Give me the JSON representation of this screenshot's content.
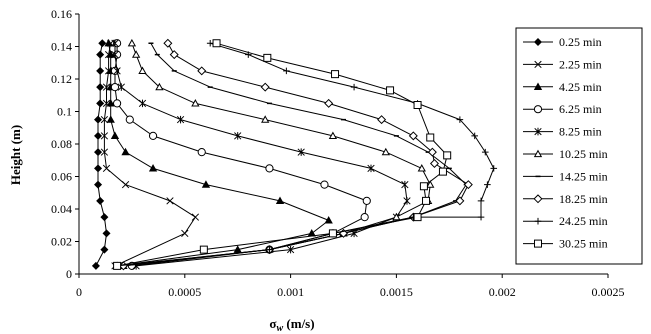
{
  "chart_data": {
    "type": "scatter",
    "title": "",
    "xlabel_symbol": "σ",
    "xlabel_subscript": "w",
    "xlabel_units": " (m/s)",
    "ylabel": "Height (m)",
    "xlim": [
      0,
      0.0025
    ],
    "ylim": [
      0,
      0.16
    ],
    "x_ticks": [
      0,
      0.0005,
      0.001,
      0.0015,
      0.002,
      0.0025
    ],
    "x_tick_labels": [
      "0",
      "0.0005",
      "0.001",
      "0.0015",
      "0.002",
      "0.0025"
    ],
    "y_ticks": [
      0,
      0.02,
      0.04,
      0.06,
      0.08,
      0.1,
      0.12,
      0.14,
      0.16
    ],
    "y_tick_labels": [
      "0",
      "0.02",
      "0.04",
      "0.06",
      "0.08",
      "0.1",
      "0.12",
      "0.14",
      "0.16"
    ],
    "grid": false,
    "legend_position": "right",
    "series": [
      {
        "name": "0.25 min",
        "marker": "diamond-filled",
        "points": [
          [
            8e-05,
            0.005
          ],
          [
            0.00012,
            0.015
          ],
          [
            0.00013,
            0.025
          ],
          [
            0.00012,
            0.035
          ],
          [
            0.0001,
            0.045
          ],
          [
            9e-05,
            0.055
          ],
          [
            9e-05,
            0.065
          ],
          [
            9e-05,
            0.075
          ],
          [
            9e-05,
            0.085
          ],
          [
            9e-05,
            0.095
          ],
          [
            0.0001,
            0.105
          ],
          [
            0.0001,
            0.115
          ],
          [
            0.0001,
            0.125
          ],
          [
            0.0001,
            0.135
          ],
          [
            0.00011,
            0.142
          ]
        ]
      },
      {
        "name": "2.25 min",
        "marker": "x",
        "points": [
          [
            0.00017,
            0.005
          ],
          [
            0.0005,
            0.025
          ],
          [
            0.00055,
            0.035
          ],
          [
            0.00043,
            0.045
          ],
          [
            0.00022,
            0.055
          ],
          [
            0.00013,
            0.065
          ],
          [
            0.00012,
            0.075
          ],
          [
            0.00012,
            0.085
          ],
          [
            0.00012,
            0.095
          ],
          [
            0.00013,
            0.105
          ],
          [
            0.00013,
            0.115
          ],
          [
            0.00014,
            0.125
          ],
          [
            0.00014,
            0.135
          ],
          [
            0.00015,
            0.142
          ]
        ]
      },
      {
        "name": "4.25 min",
        "marker": "triangle-filled",
        "points": [
          [
            0.00018,
            0.005
          ],
          [
            0.00075,
            0.015
          ],
          [
            0.0011,
            0.025
          ],
          [
            0.00118,
            0.033
          ],
          [
            0.00095,
            0.045
          ],
          [
            0.0006,
            0.055
          ],
          [
            0.00035,
            0.065
          ],
          [
            0.00022,
            0.075
          ],
          [
            0.00017,
            0.085
          ],
          [
            0.00015,
            0.095
          ],
          [
            0.00015,
            0.105
          ],
          [
            0.00015,
            0.115
          ],
          [
            0.00015,
            0.125
          ],
          [
            0.00015,
            0.135
          ],
          [
            0.00014,
            0.142
          ]
        ]
      },
      {
        "name": "6.25 min",
        "marker": "circle-open",
        "points": [
          [
            0.00025,
            0.005
          ],
          [
            0.0009,
            0.015
          ],
          [
            0.0012,
            0.025
          ],
          [
            0.00135,
            0.035
          ],
          [
            0.00136,
            0.045
          ],
          [
            0.00116,
            0.055
          ],
          [
            0.0009,
            0.065
          ],
          [
            0.00058,
            0.075
          ],
          [
            0.00035,
            0.085
          ],
          [
            0.00024,
            0.095
          ],
          [
            0.00018,
            0.105
          ],
          [
            0.00017,
            0.115
          ],
          [
            0.00017,
            0.125
          ],
          [
            0.00018,
            0.135
          ],
          [
            0.00018,
            0.142
          ]
        ]
      },
      {
        "name": "8.25 min",
        "marker": "star",
        "points": [
          [
            0.00027,
            0.005
          ],
          [
            0.001,
            0.015
          ],
          [
            0.0013,
            0.025
          ],
          [
            0.0015,
            0.035
          ],
          [
            0.00155,
            0.045
          ],
          [
            0.00154,
            0.055
          ],
          [
            0.00138,
            0.065
          ],
          [
            0.00105,
            0.075
          ],
          [
            0.00075,
            0.085
          ],
          [
            0.00048,
            0.095
          ],
          [
            0.0003,
            0.105
          ],
          [
            0.0002,
            0.115
          ],
          [
            0.00018,
            0.125
          ],
          [
            0.00017,
            0.135
          ],
          [
            0.00017,
            0.142
          ]
        ]
      },
      {
        "name": "10.25 min",
        "marker": "triangle-open",
        "points": [
          [
            0.00021,
            0.005
          ],
          [
            0.0009,
            0.015
          ],
          [
            0.00125,
            0.025
          ],
          [
            0.0015,
            0.035
          ],
          [
            0.00165,
            0.045
          ],
          [
            0.00166,
            0.055
          ],
          [
            0.00162,
            0.065
          ],
          [
            0.00145,
            0.075
          ],
          [
            0.0012,
            0.085
          ],
          [
            0.00088,
            0.095
          ],
          [
            0.00055,
            0.105
          ],
          [
            0.00038,
            0.115
          ],
          [
            0.0003,
            0.125
          ],
          [
            0.00027,
            0.135
          ],
          [
            0.00025,
            0.142
          ]
        ]
      },
      {
        "name": "14.25 min",
        "marker": "dash",
        "points": [
          [
            0.00019,
            0.005
          ],
          [
            0.0009,
            0.015
          ],
          [
            0.00125,
            0.025
          ],
          [
            0.00158,
            0.035
          ],
          [
            0.00178,
            0.045
          ],
          [
            0.00183,
            0.055
          ],
          [
            0.00175,
            0.065
          ],
          [
            0.00165,
            0.075
          ],
          [
            0.0015,
            0.085
          ],
          [
            0.00125,
            0.095
          ],
          [
            0.0009,
            0.105
          ],
          [
            0.00062,
            0.115
          ],
          [
            0.00045,
            0.125
          ],
          [
            0.00037,
            0.135
          ],
          [
            0.00034,
            0.142
          ]
        ]
      },
      {
        "name": "18.25 min",
        "marker": "diamond-open",
        "points": [
          [
            0.00021,
            0.005
          ],
          [
            0.0009,
            0.015
          ],
          [
            0.00125,
            0.025
          ],
          [
            0.00158,
            0.035
          ],
          [
            0.0018,
            0.045
          ],
          [
            0.00184,
            0.055
          ],
          [
            0.00168,
            0.068
          ],
          [
            0.00167,
            0.075
          ],
          [
            0.00158,
            0.085
          ],
          [
            0.00143,
            0.095
          ],
          [
            0.00118,
            0.105
          ],
          [
            0.00088,
            0.115
          ],
          [
            0.00058,
            0.125
          ],
          [
            0.00045,
            0.135
          ],
          [
            0.00042,
            0.142
          ]
        ]
      },
      {
        "name": "24.25 min",
        "marker": "plus",
        "points": [
          [
            0.00018,
            0.005
          ],
          [
            0.0009,
            0.015
          ],
          [
            0.0012,
            0.025
          ],
          [
            0.00158,
            0.035
          ],
          [
            0.0019,
            0.035
          ],
          [
            0.0019,
            0.045
          ],
          [
            0.00193,
            0.055
          ],
          [
            0.00196,
            0.065
          ],
          [
            0.00192,
            0.075
          ],
          [
            0.00187,
            0.085
          ],
          [
            0.0018,
            0.095
          ],
          [
            0.0016,
            0.105
          ],
          [
            0.0013,
            0.115
          ],
          [
            0.00098,
            0.125
          ],
          [
            0.0008,
            0.135
          ],
          [
            0.00062,
            0.142
          ]
        ]
      },
      {
        "name": "30.25 min",
        "marker": "square-open",
        "points": [
          [
            0.00018,
            0.005
          ],
          [
            0.00059,
            0.015
          ],
          [
            0.0012,
            0.025
          ],
          [
            0.0016,
            0.035
          ],
          [
            0.00164,
            0.045
          ],
          [
            0.00163,
            0.054
          ],
          [
            0.00172,
            0.063
          ],
          [
            0.00174,
            0.073
          ],
          [
            0.00166,
            0.084
          ],
          [
            0.0016,
            0.104
          ],
          [
            0.00147,
            0.113
          ],
          [
            0.00121,
            0.123
          ],
          [
            0.00089,
            0.133
          ],
          [
            0.00065,
            0.142
          ]
        ]
      }
    ]
  }
}
